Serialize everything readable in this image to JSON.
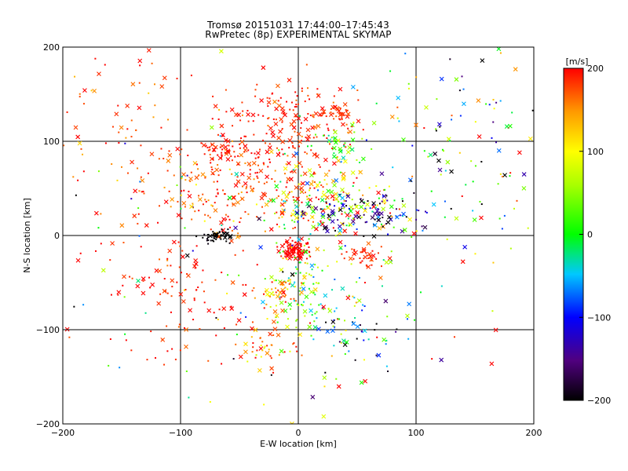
{
  "chart_data": {
    "type": "scatter",
    "title": "Tromsø 20151031 17:44:00–17:45:43",
    "subtitle": "RwPretec (8p) EXPERIMENTAL SKYMAP",
    "xlabel": "E-W location [km]",
    "ylabel": "N-S location [km]",
    "xlim": [
      -200,
      200
    ],
    "ylim": [
      -200,
      200
    ],
    "x_ticks": [
      -200,
      -100,
      0,
      100,
      200
    ],
    "y_ticks": [
      -200,
      -100,
      0,
      100,
      200
    ],
    "grid": true,
    "colorbar": {
      "label": "[m/s]",
      "range": [
        -200,
        200
      ],
      "ticks": [
        200,
        100,
        0,
        -100,
        -200
      ]
    },
    "markers": [
      "dot (meteor echo)",
      "x (multi-point echo)"
    ],
    "clusters": [
      {
        "x": -8,
        "y": 118,
        "sx": 30,
        "sy": 25,
        "n": 170,
        "v": 190,
        "vs": 15
      },
      {
        "x": -50,
        "y": 50,
        "sx": 40,
        "sy": 30,
        "n": 220,
        "v": 180,
        "vs": 25
      },
      {
        "x": -62,
        "y": 88,
        "sx": 10,
        "sy": 7,
        "n": 45,
        "v": 195,
        "vs": 8
      },
      {
        "x": -3,
        "y": -15,
        "sx": 6,
        "sy": 5,
        "n": 90,
        "v": 200,
        "vs": 5
      },
      {
        "x": 25,
        "y": 35,
        "sx": 25,
        "sy": 20,
        "n": 170,
        "v": 110,
        "vs": 90
      },
      {
        "x": 55,
        "y": 25,
        "sx": 28,
        "sy": 12,
        "n": 110,
        "v": -130,
        "vs": 70
      },
      {
        "x": -68,
        "y": 0,
        "sx": 7,
        "sy": 4,
        "n": 45,
        "v": -200,
        "vs": 5
      },
      {
        "x": 0,
        "y": -55,
        "sx": 15,
        "sy": 25,
        "n": 95,
        "v": 40,
        "vs": 50
      },
      {
        "x": -15,
        "y": -60,
        "sx": 8,
        "sy": 8,
        "n": 40,
        "v": 140,
        "vs": 40
      },
      {
        "x": -30,
        "y": -120,
        "sx": 12,
        "sy": 12,
        "n": 40,
        "v": 150,
        "vs": 40
      },
      {
        "x": -95,
        "y": -70,
        "sx": 35,
        "sy": 35,
        "n": 110,
        "v": 190,
        "vs": 15
      },
      {
        "x": 32,
        "y": 130,
        "sx": 8,
        "sy": 4,
        "n": 35,
        "v": 180,
        "vs": 10
      },
      {
        "x": 55,
        "y": -22,
        "sx": 10,
        "sy": 5,
        "n": 40,
        "v": 185,
        "vs": 10
      },
      {
        "x": 35,
        "y": 95,
        "sx": 10,
        "sy": 8,
        "n": 35,
        "v": 20,
        "vs": 40
      },
      {
        "x": 140,
        "y": 100,
        "sx": 45,
        "sy": 55,
        "n": 110,
        "v": 0,
        "vs": 140
      },
      {
        "x": 45,
        "y": -100,
        "sx": 30,
        "sy": 20,
        "n": 70,
        "v": -60,
        "vs": 100
      },
      {
        "x": -150,
        "y": 120,
        "sx": 35,
        "sy": 50,
        "n": 75,
        "v": 180,
        "vs": 30
      },
      {
        "x": 0,
        "y": 0,
        "sx": 120,
        "sy": 120,
        "n": 230,
        "v": 60,
        "vs": 130
      }
    ]
  }
}
